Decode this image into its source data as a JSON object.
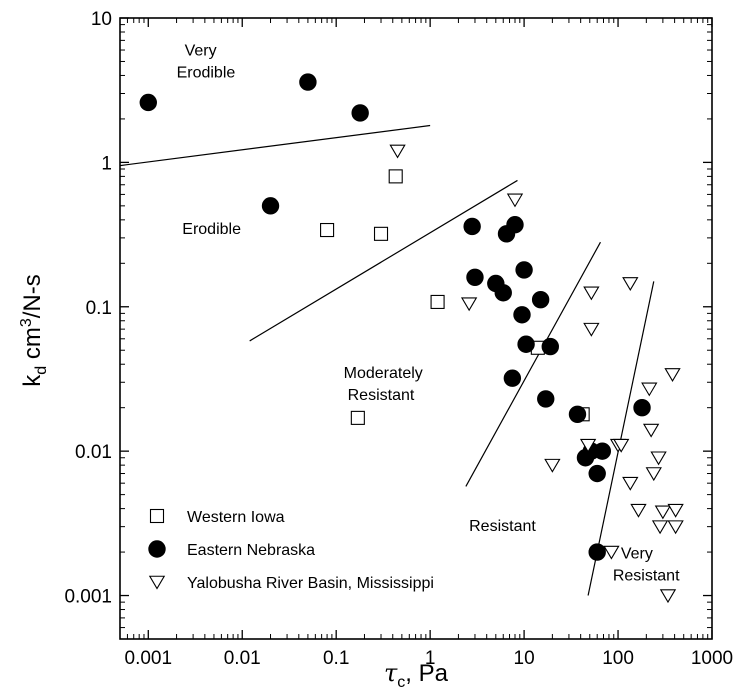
{
  "chart_data": {
    "type": "scatter",
    "title": "",
    "xlabel": "τc, Pa",
    "ylabel": "kd cm3/N-s",
    "xlabel_parts": {
      "symbol": "τ",
      "sub": "c",
      "rest": ", Pa"
    },
    "ylabel_parts": {
      "symbol": "k",
      "sub": "d",
      "mid": " cm",
      "sup": "3",
      "rest": "/N-s"
    },
    "xscale": "log",
    "yscale": "log",
    "xlim": [
      0.0005,
      1000
    ],
    "ylim": [
      0.0005,
      10
    ],
    "xticks": [
      {
        "value": 0.001,
        "label": "0.001"
      },
      {
        "value": 0.01,
        "label": "0.01"
      },
      {
        "value": 0.1,
        "label": "0.1"
      },
      {
        "value": 1,
        "label": "1"
      },
      {
        "value": 10,
        "label": "10"
      },
      {
        "value": 100,
        "label": "100"
      },
      {
        "value": 1000,
        "label": "1000"
      }
    ],
    "yticks": [
      {
        "value": 0.001,
        "label": "0.001"
      },
      {
        "value": 0.01,
        "label": "0.01"
      },
      {
        "value": 0.1,
        "label": "0.1"
      },
      {
        "value": 1,
        "label": "1"
      },
      {
        "value": 10,
        "label": "10"
      }
    ],
    "grid": false,
    "legend_position": "bottom-left",
    "series": [
      {
        "name": "Western Iowa",
        "marker": "square-open",
        "points": [
          [
            0.08,
            0.34
          ],
          [
            0.3,
            0.32
          ],
          [
            0.43,
            0.8
          ],
          [
            1.2,
            0.108
          ],
          [
            0.17,
            0.017
          ],
          [
            14,
            0.052
          ],
          [
            42,
            0.018
          ]
        ]
      },
      {
        "name": "Eastern Nebraska",
        "marker": "circle-filled",
        "points": [
          [
            0.001,
            2.6
          ],
          [
            0.05,
            3.6
          ],
          [
            0.18,
            2.2
          ],
          [
            0.02,
            0.5
          ],
          [
            2.8,
            0.36
          ],
          [
            3.0,
            0.16
          ],
          [
            5.0,
            0.145
          ],
          [
            6.0,
            0.125
          ],
          [
            6.5,
            0.32
          ],
          [
            8.0,
            0.37
          ],
          [
            10.0,
            0.18
          ],
          [
            9.5,
            0.088
          ],
          [
            15,
            0.112
          ],
          [
            10.5,
            0.055
          ],
          [
            19,
            0.053
          ],
          [
            7.5,
            0.032
          ],
          [
            17,
            0.023
          ],
          [
            37,
            0.018
          ],
          [
            45,
            0.009
          ],
          [
            52,
            0.01
          ],
          [
            68,
            0.01
          ],
          [
            60,
            0.007
          ],
          [
            180,
            0.02
          ],
          [
            60,
            0.002
          ]
        ]
      },
      {
        "name": "Yalobusha River Basin, Mississippi",
        "marker": "triangle-down-open",
        "points": [
          [
            0.45,
            1.2
          ],
          [
            8.0,
            0.55
          ],
          [
            2.6,
            0.105
          ],
          [
            52,
            0.125
          ],
          [
            135,
            0.145
          ],
          [
            52,
            0.07
          ],
          [
            20,
            0.008
          ],
          [
            48,
            0.011
          ],
          [
            100,
            0.011
          ],
          [
            108,
            0.011
          ],
          [
            215,
            0.027
          ],
          [
            380,
            0.034
          ],
          [
            225,
            0.014
          ],
          [
            270,
            0.009
          ],
          [
            240,
            0.007
          ],
          [
            135,
            0.006
          ],
          [
            165,
            0.0039
          ],
          [
            300,
            0.0038
          ],
          [
            410,
            0.0039
          ],
          [
            280,
            0.003
          ],
          [
            410,
            0.003
          ],
          [
            85,
            0.002
          ],
          [
            340,
            0.001
          ]
        ]
      }
    ],
    "boundary_lines": [
      {
        "name": "very-erodible-erodible",
        "from": [
          0.0005,
          0.95
        ],
        "to": [
          1.0,
          1.8
        ]
      },
      {
        "name": "erodible-moderately-resistant",
        "from": [
          0.012,
          0.058
        ],
        "to": [
          8.5,
          0.75
        ]
      },
      {
        "name": "moderately-resistant-resistant",
        "from": [
          2.4,
          0.0057
        ],
        "to": [
          65,
          0.28
        ]
      },
      {
        "name": "resistant-very-resistant",
        "from": [
          48,
          0.001
        ],
        "to": [
          240,
          0.15
        ]
      }
    ],
    "annotations": [
      {
        "name": "very-erodible",
        "lines": [
          "Very",
          "Erodible"
        ],
        "x": 0.002,
        "y": 5.5
      },
      {
        "name": "erodible",
        "lines": [
          "Erodible"
        ],
        "x": 0.0023,
        "y": 0.32
      },
      {
        "name": "moderately-resistant",
        "lines": [
          "Moderately",
          "Resistant"
        ],
        "x": 0.12,
        "y": 0.032
      },
      {
        "name": "resistant",
        "lines": [
          "Resistant"
        ],
        "x": 2.6,
        "y": 0.0028
      },
      {
        "name": "very-resistant",
        "lines": [
          "Very",
          "Resistant"
        ],
        "x": 88,
        "y": 0.0018
      }
    ]
  }
}
